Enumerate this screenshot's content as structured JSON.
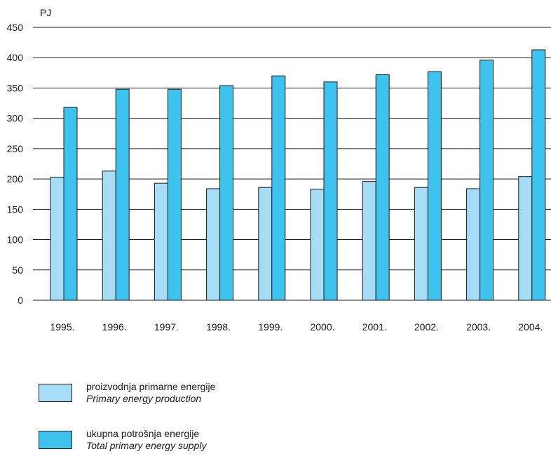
{
  "chart_data": {
    "type": "bar",
    "ylabel": "PJ",
    "ylim": [
      0,
      450
    ],
    "yticks": [
      0,
      50,
      100,
      150,
      200,
      250,
      300,
      350,
      400,
      450
    ],
    "grid": true,
    "categories": [
      "1995.",
      "1996.",
      "1997.",
      "1998.",
      "1999.",
      "2000.",
      "2001.",
      "2002.",
      "2003.",
      "2004."
    ],
    "series": [
      {
        "name": "proizvodnja primarne energije",
        "name_en": "Primary energy production",
        "color": "#a6dcf5",
        "values": [
          203,
          213,
          193,
          184,
          186,
          183,
          196,
          186,
          184,
          204
        ]
      },
      {
        "name": "ukupna potrošnja energije",
        "name_en": "Total primary energy supply",
        "color": "#3ec3ef",
        "values": [
          318,
          348,
          348,
          354,
          370,
          360,
          372,
          377,
          396,
          413
        ]
      }
    ],
    "legend_position": "bottom-left"
  }
}
